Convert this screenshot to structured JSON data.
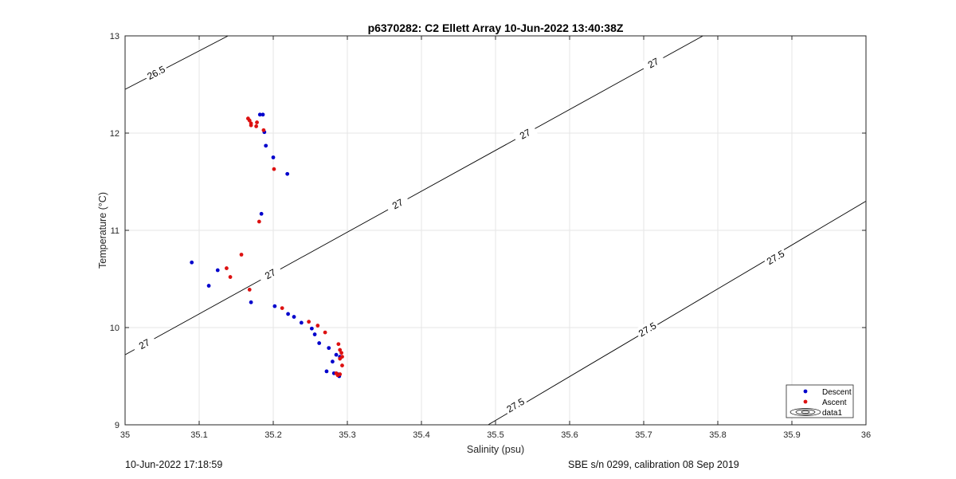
{
  "chart_data": {
    "type": "scatter",
    "title": "p6370282: C2 Ellett Array 10-Jun-2022 13:40:38Z",
    "xlabel": "Salinity (psu)",
    "ylabel": "Temperature (°C)",
    "xlim": [
      35,
      36
    ],
    "ylim": [
      9,
      13
    ],
    "xticks": [
      "35",
      "35.1",
      "35.2",
      "35.3",
      "35.4",
      "35.5",
      "35.6",
      "35.7",
      "35.8",
      "35.9",
      "36"
    ],
    "yticks": [
      "9",
      "10",
      "11",
      "12",
      "13"
    ],
    "grid": true,
    "legend_location": "bottom-right",
    "series": [
      {
        "name": "Descent",
        "color": "#0000cc",
        "points": [
          [
            35.09,
            10.67
          ],
          [
            35.113,
            10.43
          ],
          [
            35.125,
            10.59
          ],
          [
            35.17,
            10.26
          ],
          [
            35.182,
            12.19
          ],
          [
            35.186,
            12.19
          ],
          [
            35.188,
            12.01
          ],
          [
            35.19,
            11.87
          ],
          [
            35.2,
            11.75
          ],
          [
            35.219,
            11.58
          ],
          [
            35.184,
            11.17
          ],
          [
            35.202,
            10.22
          ],
          [
            35.22,
            10.14
          ],
          [
            35.228,
            10.11
          ],
          [
            35.238,
            10.05
          ],
          [
            35.252,
            9.99
          ],
          [
            35.256,
            9.93
          ],
          [
            35.262,
            9.84
          ],
          [
            35.275,
            9.79
          ],
          [
            35.28,
            9.65
          ],
          [
            35.285,
            9.72
          ],
          [
            35.29,
            9.7
          ],
          [
            35.272,
            9.55
          ],
          [
            35.282,
            9.53
          ],
          [
            35.287,
            9.52
          ],
          [
            35.289,
            9.5
          ]
        ]
      },
      {
        "name": "Ascent",
        "color": "#dd1111",
        "points": [
          [
            35.157,
            10.75
          ],
          [
            35.137,
            10.61
          ],
          [
            35.142,
            10.52
          ],
          [
            35.168,
            10.39
          ],
          [
            35.181,
            11.09
          ],
          [
            35.166,
            12.15
          ],
          [
            35.168,
            12.13
          ],
          [
            35.17,
            12.1
          ],
          [
            35.17,
            12.08
          ],
          [
            35.177,
            12.07
          ],
          [
            35.178,
            12.11
          ],
          [
            35.187,
            12.03
          ],
          [
            35.201,
            11.63
          ],
          [
            35.212,
            10.2
          ],
          [
            35.248,
            10.06
          ],
          [
            35.26,
            10.02
          ],
          [
            35.27,
            9.95
          ],
          [
            35.288,
            9.83
          ],
          [
            35.29,
            9.77
          ],
          [
            35.292,
            9.74
          ],
          [
            35.293,
            9.7
          ],
          [
            35.29,
            9.68
          ],
          [
            35.293,
            9.61
          ],
          [
            35.285,
            9.53
          ],
          [
            35.287,
            9.51
          ],
          [
            35.29,
            9.52
          ]
        ]
      }
    ],
    "contours": [
      {
        "label": "26.5",
        "p1": [
          35.0,
          12.45
        ],
        "p2": [
          35.139,
          13.0
        ],
        "labels": [
          [
            35.042,
            12.62
          ]
        ]
      },
      {
        "label": "27",
        "p1": [
          35.0,
          9.72
        ],
        "p2": [
          35.78,
          13.0
        ],
        "labels": [
          [
            35.026,
            9.83
          ],
          [
            35.196,
            10.55
          ],
          [
            35.368,
            11.27
          ],
          [
            35.54,
            11.99
          ],
          [
            35.713,
            12.72
          ]
        ]
      },
      {
        "label": "27.5",
        "p1": [
          35.49,
          9.0
        ],
        "p2": [
          36.0,
          11.3
        ],
        "labels": [
          [
            35.527,
            9.2
          ],
          [
            35.705,
            9.98
          ],
          [
            35.878,
            10.72
          ]
        ]
      }
    ],
    "legend": [
      "Descent",
      "Ascent",
      "data1"
    ]
  },
  "footer": {
    "left": "10-Jun-2022 17:18:59",
    "right": "SBE s/n 0299, calibration 08 Sep 2019"
  }
}
